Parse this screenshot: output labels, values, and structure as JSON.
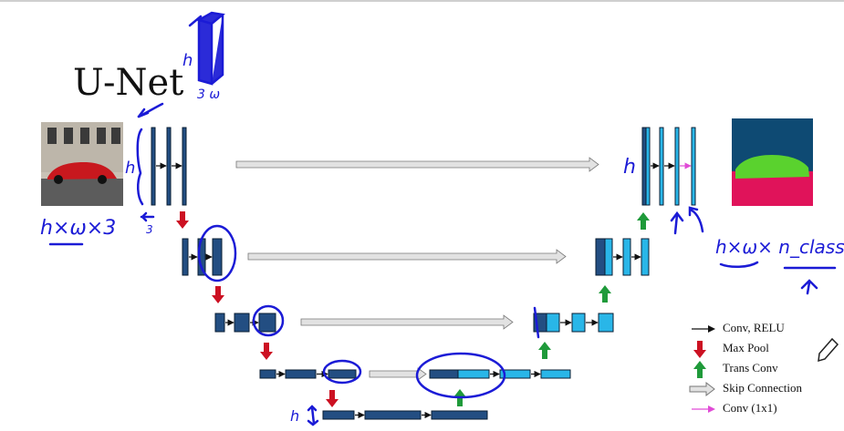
{
  "title": "U-Net",
  "annotations": {
    "input_shape": "h×ω×3",
    "output_shape": "h×ω× n_classes",
    "input_channels": "3",
    "volume_h": "h",
    "volume_w": "3 ω",
    "side_h": "h",
    "bottom_h": "h",
    "right_h": "h"
  },
  "legend": [
    {
      "icon": "black-arrow-icon",
      "label": "Conv, RELU"
    },
    {
      "icon": "red-down-arrow-icon",
      "label": "Max Pool"
    },
    {
      "icon": "green-up-arrow-icon",
      "label": "Trans Conv"
    },
    {
      "icon": "gray-skip-arrow-icon",
      "label": "Skip Connection"
    },
    {
      "icon": "pink-arrow-icon",
      "label": "Conv (1x1)"
    }
  ],
  "colors": {
    "dark_block": "#234e82",
    "light_block": "#29b6e8",
    "ink": "#1b1bd6",
    "max_pool": "#cc1122",
    "trans_conv": "#1f9a3a",
    "skip": "#d8d8d8",
    "conv1x1": "#e04bd6",
    "seg_background": "#0e4a73",
    "seg_car": "#5ad22e",
    "seg_road": "#e0135a"
  }
}
